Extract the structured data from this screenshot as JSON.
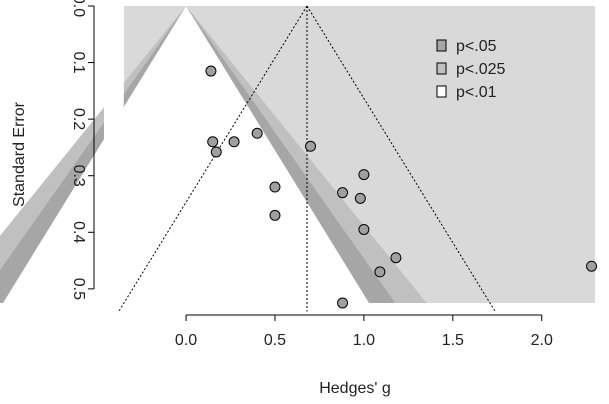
{
  "chart_data": {
    "type": "scatter",
    "subtype": "contour-enhanced funnel plot",
    "title": "",
    "xlabel": "Hedges' g",
    "ylabel": "Standard Error",
    "xlim": [
      -0.45,
      2.35
    ],
    "ylim": [
      0.525,
      0.0
    ],
    "y_reversed": true,
    "x_ticks": [
      0.0,
      0.5,
      1.0,
      1.5,
      2.0
    ],
    "x_tick_labels": [
      "0.0",
      "0.5",
      "1.0",
      "1.5",
      "2.0"
    ],
    "y_ticks": [
      0.0,
      0.1,
      0.2,
      0.3,
      0.4,
      0.5
    ],
    "y_tick_labels": [
      "0.0",
      "0.1",
      "0.2",
      "0.3",
      "0.4",
      "0.5"
    ],
    "grid": false,
    "legend_position": "top-right",
    "contour_center": 0.0,
    "contour_region_xrange": [
      -0.35,
      2.3
    ],
    "contours": [
      {
        "label": "p<.05",
        "z": 1.96,
        "color": "#a6a6a6"
      },
      {
        "label": "p<.025",
        "z": 2.24,
        "color": "#c0c0c0"
      },
      {
        "label": "p<.01",
        "z": 2.576,
        "color": "#d9d9d9"
      }
    ],
    "summary_estimate": 0.68,
    "points": [
      {
        "x": 0.14,
        "y": 0.115
      },
      {
        "x": 0.15,
        "y": 0.24
      },
      {
        "x": 0.17,
        "y": 0.258
      },
      {
        "x": 0.27,
        "y": 0.24
      },
      {
        "x": 0.4,
        "y": 0.225
      },
      {
        "x": 0.5,
        "y": 0.32
      },
      {
        "x": 0.5,
        "y": 0.37
      },
      {
        "x": 0.7,
        "y": 0.248
      },
      {
        "x": 0.88,
        "y": 0.33
      },
      {
        "x": 0.98,
        "y": 0.34
      },
      {
        "x": 1.0,
        "y": 0.298
      },
      {
        "x": 1.0,
        "y": 0.395
      },
      {
        "x": 1.09,
        "y": 0.47
      },
      {
        "x": 1.18,
        "y": 0.445
      },
      {
        "x": 0.88,
        "y": 0.525
      },
      {
        "x": 2.28,
        "y": 0.46
      }
    ]
  }
}
